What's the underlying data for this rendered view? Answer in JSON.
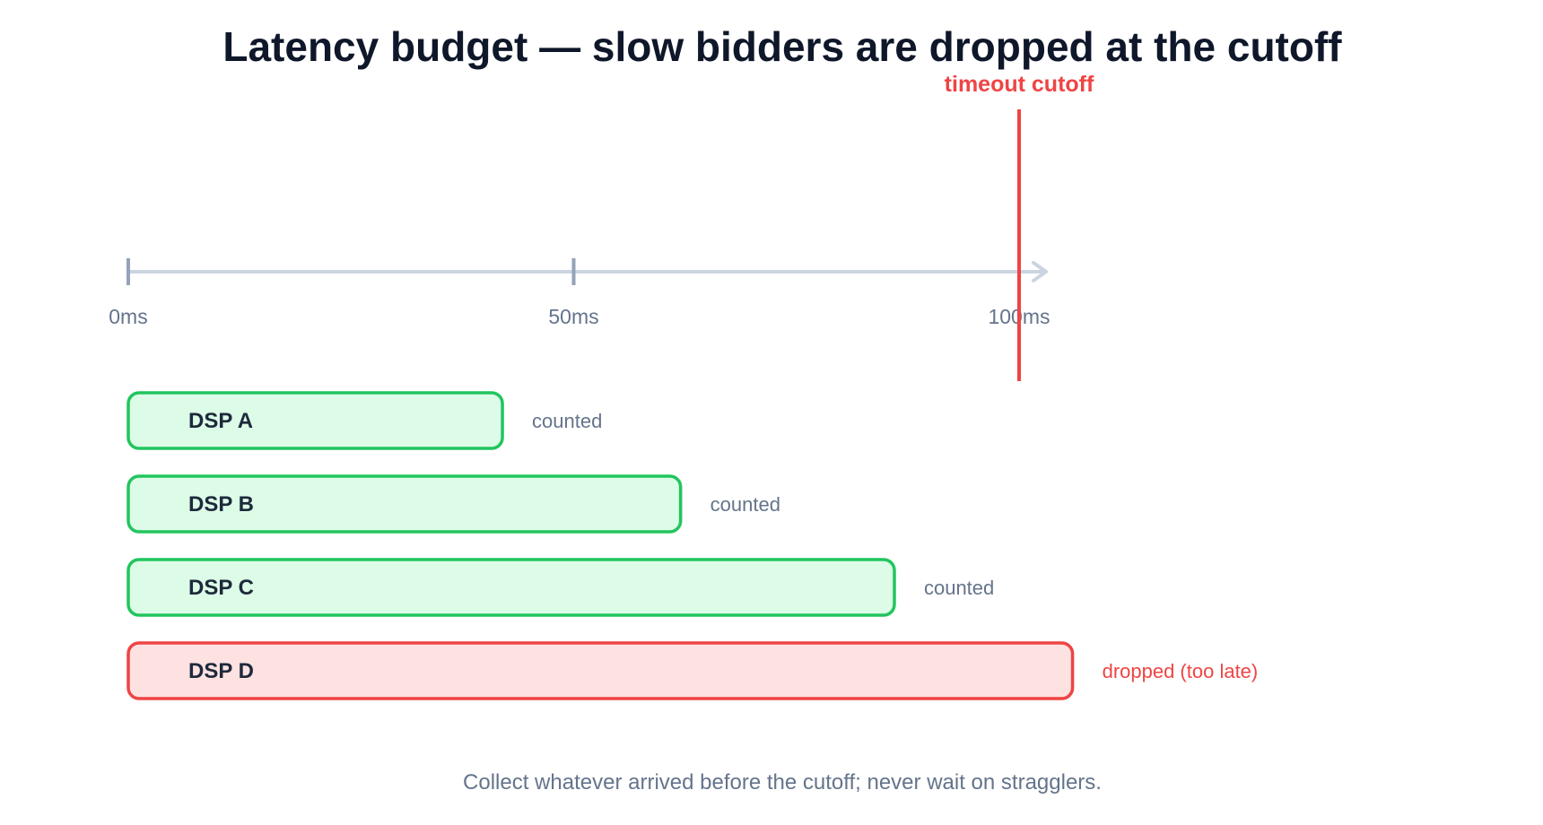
{
  "title": "Latency budget — slow bidders are dropped at the cutoff",
  "cutoff": {
    "label": "timeout cutoff",
    "value_ms": 100,
    "color": "#ef4444"
  },
  "axis": {
    "ticks": [
      {
        "value": 0,
        "label": "0ms"
      },
      {
        "value": 50,
        "label": "50ms"
      },
      {
        "value": 100,
        "label": "100ms"
      }
    ],
    "color": "#cbd5e1",
    "tick_color": "#94a3b8"
  },
  "bidders": [
    {
      "name": "DSP A",
      "latency_ms": 42,
      "status": "counted",
      "state": "ok"
    },
    {
      "name": "DSP B",
      "latency_ms": 62,
      "status": "counted",
      "state": "ok"
    },
    {
      "name": "DSP C",
      "latency_ms": 86,
      "status": "counted",
      "state": "ok"
    },
    {
      "name": "DSP D",
      "latency_ms": 106,
      "status": "dropped (too late)",
      "state": "late"
    }
  ],
  "colors": {
    "ok_stroke": "#22c55e",
    "ok_fill": "#dcfce7",
    "late_stroke": "#ef4444",
    "late_fill": "#fee2e2",
    "status_text": "#64748b",
    "late_text": "#ef4444"
  },
  "caption": "Collect whatever arrived before the cutoff; never wait on stragglers."
}
